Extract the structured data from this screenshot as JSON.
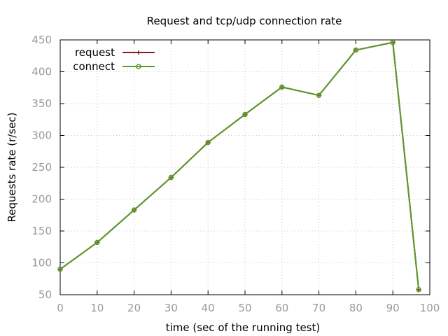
{
  "chart_data": {
    "type": "line",
    "title": "Request and tcp/udp connection rate",
    "xlabel": "time (sec of the running test)",
    "ylabel": "Requests rate (r/sec)",
    "xlim": [
      0,
      100
    ],
    "ylim": [
      50,
      450
    ],
    "x_ticks": [
      "0",
      "10",
      "20",
      "30",
      "40",
      "50",
      "60",
      "70",
      "80",
      "90",
      "100"
    ],
    "y_ticks": [
      "50",
      "100",
      "150",
      "200",
      "250",
      "300",
      "350",
      "400",
      "450"
    ],
    "grid": true,
    "legend_position": "top-left",
    "x": [
      0,
      10,
      20,
      30,
      40,
      50,
      60,
      70,
      80,
      90,
      97
    ],
    "series": [
      {
        "name": "request",
        "color": "#8b1a1a",
        "marker": "plus",
        "values": [
          90,
          132,
          183,
          234,
          289,
          333,
          376,
          363,
          434,
          446,
          58
        ]
      },
      {
        "name": "connect",
        "color": "#5a9a2a",
        "marker": "circle",
        "values": [
          90,
          132,
          183,
          234,
          289,
          333,
          376,
          363,
          434,
          446,
          58
        ]
      }
    ]
  }
}
